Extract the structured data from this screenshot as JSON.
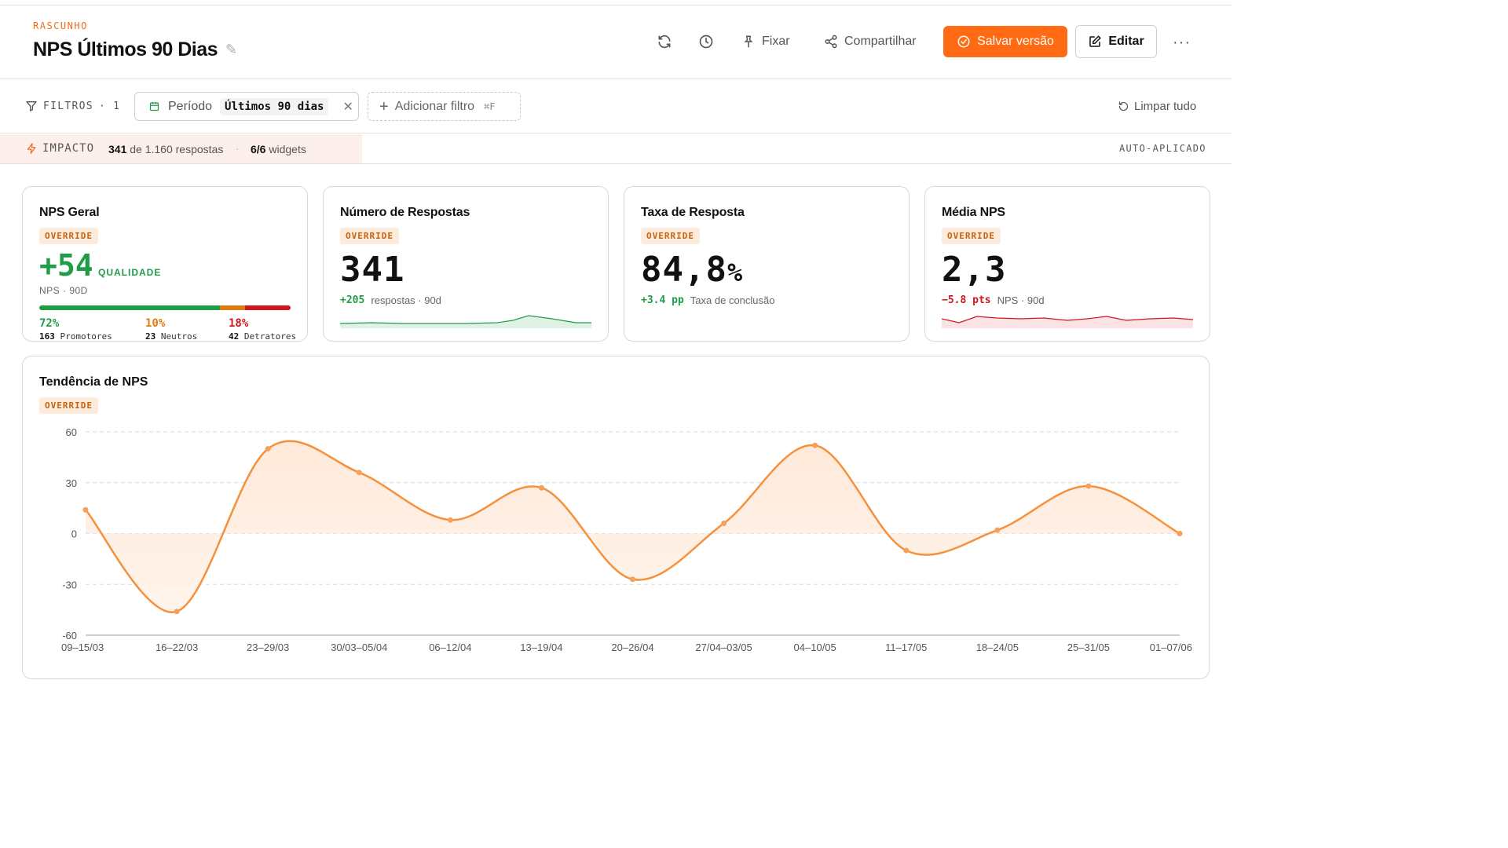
{
  "header": {
    "status": "RASCUNHO",
    "title": "NPS Últimos 90 Dias",
    "pin_label": "Fixar",
    "share_label": "Compartilhar",
    "save_label": "Salvar versão",
    "edit_label": "Editar"
  },
  "filters": {
    "label": "FILTROS",
    "count": "· 1",
    "chip_label": "Período",
    "chip_value": "Últimos 90 dias",
    "add_label": "Adicionar filtro",
    "add_shortcut": "⌘F",
    "clear_label": "Limpar tudo"
  },
  "impact": {
    "label": "IMPACTO",
    "responses_shown": "341",
    "responses_rest": "de 1.160 respostas",
    "widgets_shown": "6/6",
    "widgets_rest": "widgets",
    "auto": "AUTO-APLICADO"
  },
  "colors": {
    "accent": "#ff6a13",
    "positive": "#1f9d45",
    "neutral": "#e07a10",
    "negative": "#d0161e"
  },
  "cards": {
    "nps": {
      "title": "NPS Geral",
      "badge": "OVERRIDE",
      "value": "+54",
      "quality": "QUALIDADE",
      "sub": "NPS · 90D",
      "promoters_pct": "72%",
      "promoters_n": "163",
      "promoters_label": "Promotores",
      "neutrals_pct": "10%",
      "neutrals_n": "23",
      "neutrals_label": "Neutros",
      "detractors_pct": "18%",
      "detractors_n": "42",
      "detractors_label": "Detratores"
    },
    "responses": {
      "title": "Número de Respostas",
      "badge": "OVERRIDE",
      "value": "341",
      "delta": "+205",
      "delta_text": "respostas · 90d"
    },
    "rate": {
      "title": "Taxa de Resposta",
      "badge": "OVERRIDE",
      "value": "84,8",
      "unit": "%",
      "delta": "+3.4 pp",
      "delta_text": "Taxa de conclusão"
    },
    "avg": {
      "title": "Média NPS",
      "badge": "OVERRIDE",
      "value": "2,3",
      "delta": "−5.8 pts",
      "delta_text": "NPS · 90d"
    }
  },
  "trend": {
    "title": "Tendência de NPS",
    "badge": "OVERRIDE"
  },
  "chart_data": {
    "type": "area",
    "title": "Tendência de NPS",
    "xlabel": "",
    "ylabel": "",
    "ylim": [
      -60,
      60
    ],
    "yticks": [
      60,
      30,
      0,
      -30,
      -60
    ],
    "grid": true,
    "categories": [
      "09–15/03",
      "16–22/03",
      "23–29/03",
      "30/03–05/04",
      "06–12/04",
      "13–19/04",
      "20–26/04",
      "27/04–03/05",
      "04–10/05",
      "11–17/05",
      "18–24/05",
      "25–31/05",
      "01–07/06"
    ],
    "values": [
      14,
      -46,
      50,
      36,
      8,
      27,
      -27,
      6,
      52,
      -10,
      2,
      28,
      0
    ]
  }
}
